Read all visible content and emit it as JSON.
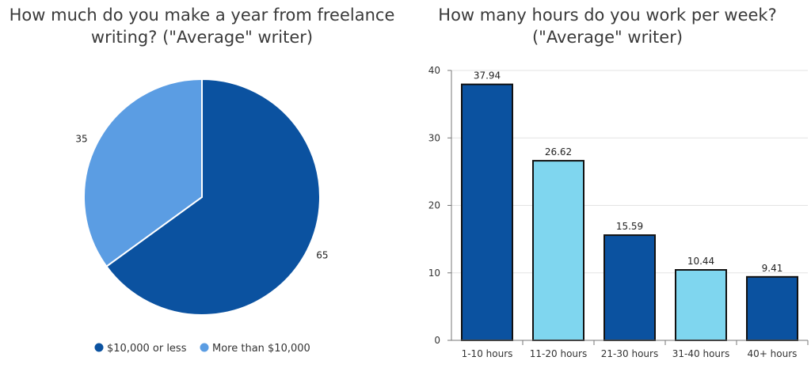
{
  "chart_data": [
    {
      "type": "pie",
      "title": [
        "How much do you make a year from freelance",
        "writing? (\"Average\" writer)"
      ],
      "slices": [
        {
          "label": "$10,000 or less",
          "value": 65,
          "color": "#0b52a0"
        },
        {
          "label": "More than $10,000",
          "value": 35,
          "color": "#5b9de3"
        }
      ],
      "legend_position": "bottom"
    },
    {
      "type": "bar",
      "title": [
        "How many hours do you work per week?",
        "(\"Average\" writer)"
      ],
      "categories": [
        "1-10 hours",
        "11-20 hours",
        "21-30 hours",
        "31-40 hours",
        "40+ hours"
      ],
      "values": [
        37.94,
        26.62,
        15.59,
        10.44,
        9.41
      ],
      "value_labels": [
        "37.94",
        "26.62",
        "15.59",
        "10.44",
        "9.41"
      ],
      "colors": [
        "#0b52a0",
        "#7fd6ef",
        "#0b52a0",
        "#7fd6ef",
        "#0b52a0"
      ],
      "ylim": [
        0,
        40
      ],
      "yticks": [
        0,
        10,
        20,
        30,
        40
      ],
      "grid": true
    }
  ]
}
